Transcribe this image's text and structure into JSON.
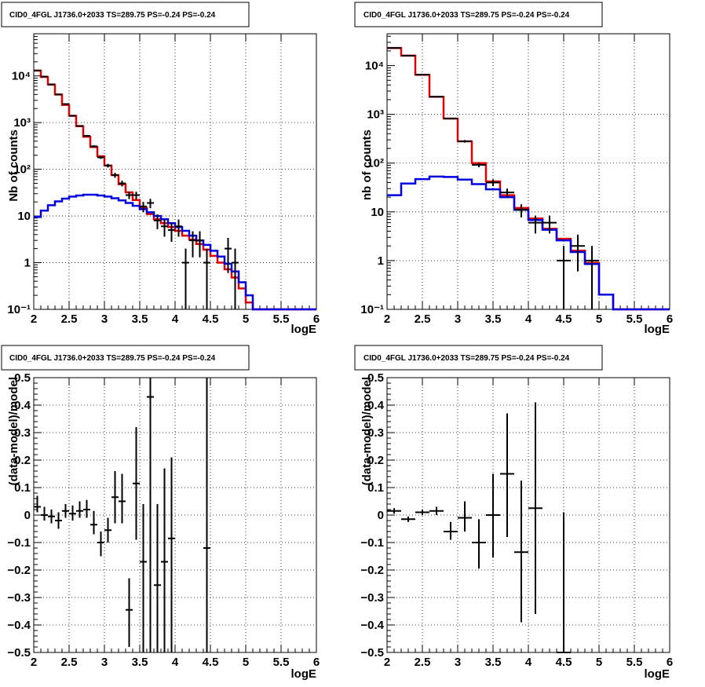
{
  "colors": {
    "data": "#000000",
    "model_total": "#e00000",
    "model_source": "#0000e0",
    "grid": "#000000",
    "frame": "#000000"
  },
  "chart_data": [
    {
      "id": "top-left",
      "type": "line",
      "title": "CID0_4FGL J1736.0+2033 TS=289.75 PS=-0.24 PS=-0.24",
      "xlabel": "logE",
      "ylabel": "Nb of counts",
      "xlim": [
        2,
        6
      ],
      "ylim": [
        0.1,
        80000
      ],
      "yscale": "log",
      "grid": true,
      "xticks": [
        2,
        2.5,
        3,
        3.5,
        4,
        4.5,
        5,
        5.5,
        6
      ],
      "xticklabels": [
        "2",
        "2.5",
        "3",
        "3.5",
        "4",
        "4.5",
        "5",
        "5.5",
        "6"
      ],
      "yticks": [
        0.1,
        1,
        10,
        100,
        1000,
        10000
      ],
      "yticklabels": [
        "10⁻¹",
        "1",
        "10",
        "10²",
        "10³",
        "10⁴"
      ],
      "bin_edges": [
        2.0,
        2.1,
        2.2,
        2.3,
        2.4,
        2.5,
        2.6,
        2.7,
        2.8,
        2.9,
        3.0,
        3.1,
        3.2,
        3.3,
        3.4,
        3.5,
        3.6,
        3.7,
        3.8,
        3.9,
        4.0,
        4.1,
        4.2,
        4.3,
        4.4,
        4.5,
        4.6,
        4.7,
        4.8,
        4.9,
        5.0,
        5.1,
        5.2,
        5.3,
        5.4,
        5.5,
        5.6,
        5.7,
        5.8,
        5.9,
        6.0
      ],
      "series": [
        {
          "style": "step",
          "color": "#e00000",
          "values": [
            13000,
            9500,
            6500,
            4000,
            2400,
            1400,
            840,
            500,
            300,
            190,
            120,
            75,
            48,
            32,
            22,
            15,
            11,
            8.5,
            7.0,
            5.8,
            4.8,
            3.8,
            3.1,
            2.5,
            1.9,
            1.4,
            1.0,
            0.72,
            0.48,
            0.28,
            0.14,
            0.1,
            0.1,
            0.1,
            0.1,
            0.1,
            0.1,
            0.1,
            0.1,
            0.1
          ]
        },
        {
          "style": "step",
          "color": "#0000e0",
          "values": [
            9.5,
            13,
            17,
            20.5,
            23.5,
            26,
            27.5,
            28.5,
            28.5,
            27.5,
            26,
            24,
            21.5,
            19,
            16.5,
            14,
            12,
            10,
            8.5,
            7.0,
            5.8,
            4.8,
            3.8,
            3.0,
            2.4,
            1.8,
            1.35,
            0.95,
            0.65,
            0.38,
            0.2,
            0.1,
            0.1,
            0.1,
            0.1,
            0.1,
            0.1,
            0.1,
            0.1,
            0.1
          ]
        },
        {
          "style": "points",
          "color": "#000000",
          "x": [
            2.05,
            2.15,
            2.25,
            2.35,
            2.45,
            2.55,
            2.65,
            2.75,
            2.85,
            2.95,
            3.05,
            3.15,
            3.25,
            3.35,
            3.45,
            3.55,
            3.65,
            3.75,
            3.85,
            3.95,
            4.05,
            4.15,
            4.25,
            4.35,
            4.45,
            4.75,
            4.85
          ],
          "y": [
            13000,
            9700,
            6600,
            4000,
            2500,
            1400,
            850,
            520,
            310,
            180,
            120,
            75,
            50,
            28,
            28,
            16,
            19,
            8,
            6,
            5,
            6,
            1,
            3,
            3,
            1,
            2,
            1
          ],
          "yerr": [
            114,
            98,
            81,
            63,
            50,
            37,
            29,
            23,
            18,
            13,
            11,
            9,
            7,
            5,
            5,
            4,
            4.3,
            2.8,
            2.4,
            2.2,
            2.4,
            1,
            1.7,
            1.7,
            1,
            1.4,
            1
          ]
        }
      ]
    },
    {
      "id": "top-right",
      "type": "line",
      "title": "CID0_4FGL J1736.0+2033 TS=289.75 PS=-0.24 PS=-0.24",
      "xlabel": "logE",
      "ylabel": "nb of counts",
      "xlim": [
        2,
        6
      ],
      "ylim": [
        0.1,
        45000
      ],
      "yscale": "log",
      "grid": true,
      "xticks": [
        2,
        2.5,
        3,
        3.5,
        4,
        4.5,
        5,
        5.5,
        6
      ],
      "xticklabels": [
        "2",
        "2.5",
        "3",
        "3.5",
        "4",
        "4.5",
        "5",
        "5.5",
        "6"
      ],
      "yticks": [
        0.1,
        1,
        10,
        100,
        1000,
        10000
      ],
      "yticklabels": [
        "10⁻¹",
        "1",
        "10",
        "10²",
        "10³",
        "10⁴"
      ],
      "bin_edges": [
        2.0,
        2.2,
        2.4,
        2.6,
        2.8,
        3.0,
        3.2,
        3.4,
        3.6,
        3.8,
        4.0,
        4.2,
        4.4,
        4.6,
        4.8,
        5.0,
        5.2,
        5.4,
        5.6,
        5.8,
        6.0
      ],
      "series": [
        {
          "style": "step",
          "color": "#e00000",
          "values": [
            23000,
            16000,
            6500,
            2300,
            820,
            280,
            100,
            42,
            22,
            12,
            7.3,
            4.5,
            2.8,
            1.6,
            0.9,
            0.2,
            0.1,
            0.1,
            0.1,
            0.1
          ]
        },
        {
          "style": "step",
          "color": "#0000e0",
          "values": [
            22,
            38,
            47,
            53,
            52,
            46,
            37,
            29,
            20,
            11,
            6.8,
            4.3,
            2.6,
            1.5,
            0.85,
            0.2,
            0.1,
            0.1,
            0.1,
            0.1
          ]
        },
        {
          "style": "points",
          "color": "#000000",
          "x": [
            2.1,
            2.3,
            2.5,
            2.7,
            2.9,
            3.1,
            3.3,
            3.5,
            3.7,
            3.9,
            4.1,
            4.3,
            4.5,
            4.7,
            4.9
          ],
          "y": [
            23000,
            16000,
            6500,
            2300,
            820,
            280,
            92,
            40,
            25,
            11,
            6,
            6,
            1,
            2,
            1
          ],
          "yerr": [
            152,
            126,
            81,
            48,
            29,
            17,
            9.6,
            6.3,
            5,
            3.3,
            2.4,
            2.4,
            1,
            1.4,
            1
          ]
        }
      ]
    },
    {
      "id": "bottom-left",
      "type": "scatter",
      "title": "CID0_4FGL J1736.0+2033 TS=289.75 PS=-0.24 PS=-0.24",
      "xlabel": "logE",
      "ylabel": "(data-model)/model",
      "xlim": [
        2,
        6
      ],
      "ylim": [
        -0.5,
        0.5
      ],
      "yscale": "linear",
      "grid": true,
      "xticks": [
        2,
        2.5,
        3,
        3.5,
        4,
        4.5,
        5,
        5.5,
        6
      ],
      "xticklabels": [
        "2",
        "2.5",
        "3",
        "3.5",
        "4",
        "4.5",
        "5",
        "5.5",
        "6"
      ],
      "yticks": [
        -0.5,
        -0.4,
        -0.3,
        -0.2,
        -0.1,
        0,
        0.1,
        0.2,
        0.3,
        0.4,
        0.5
      ],
      "yticklabels": [
        "−0.5",
        "−0.4",
        "−0.3",
        "−0.2",
        "−0.1",
        "0",
        "0.1",
        "0.2",
        "0.3",
        "0.4",
        "0.5"
      ],
      "xhalf": 0.05,
      "series": [
        {
          "style": "points",
          "color": "#000000",
          "x": [
            2.05,
            2.15,
            2.25,
            2.35,
            2.45,
            2.55,
            2.65,
            2.75,
            2.85,
            2.95,
            3.05,
            3.15,
            3.25,
            3.35,
            3.45,
            3.55,
            3.65,
            3.75,
            3.85,
            3.95,
            4.45
          ],
          "y": [
            0.03,
            0.0,
            -0.005,
            -0.02,
            0.015,
            0.005,
            0.015,
            0.02,
            -0.035,
            -0.1,
            -0.055,
            0.065,
            0.05,
            -0.345,
            0.115,
            -0.17,
            0.43,
            -0.255,
            -0.17,
            -0.085,
            -0.12
          ],
          "ylo": [
            0.01,
            -0.02,
            -0.03,
            -0.05,
            -0.01,
            -0.02,
            -0.01,
            -0.01,
            -0.07,
            -0.15,
            -0.1,
            -0.03,
            -0.03,
            -0.48,
            -0.09,
            -0.5,
            -0.5,
            -0.5,
            -0.5,
            -0.5,
            -0.5
          ],
          "yhi": [
            0.07,
            0.03,
            0.02,
            0.01,
            0.04,
            0.035,
            0.05,
            0.055,
            0.015,
            -0.06,
            -0.01,
            0.16,
            0.15,
            -0.23,
            0.32,
            0.04,
            0.5,
            0.04,
            0.17,
            0.21,
            0.5
          ]
        }
      ]
    },
    {
      "id": "bottom-right",
      "type": "scatter",
      "title": "CID0_4FGL J1736.0+2033 TS=289.75 PS=-0.24 PS=-0.24",
      "xlabel": "logE",
      "ylabel": "(data-model)/model",
      "xlim": [
        2,
        6
      ],
      "ylim": [
        -0.5,
        0.5
      ],
      "yscale": "linear",
      "grid": true,
      "xticks": [
        2,
        2.5,
        3,
        3.5,
        4,
        4.5,
        5,
        5.5,
        6
      ],
      "xticklabels": [
        "2",
        "2.5",
        "3",
        "3.5",
        "4",
        "4.5",
        "5",
        "5.5",
        "6"
      ],
      "yticks": [
        -0.5,
        -0.4,
        -0.3,
        -0.2,
        -0.1,
        0,
        0.1,
        0.2,
        0.3,
        0.4,
        0.5
      ],
      "yticklabels": [
        "−0.5",
        "−0.4",
        "−0.3",
        "−0.2",
        "−0.1",
        "0",
        "0.1",
        "0.2",
        "0.3",
        "0.4",
        "0.5"
      ],
      "xhalf": 0.1,
      "series": [
        {
          "style": "points",
          "color": "#000000",
          "x": [
            2.1,
            2.3,
            2.5,
            2.7,
            2.9,
            3.1,
            3.3,
            3.5,
            3.7,
            3.9,
            4.1,
            4.5
          ],
          "y": [
            0.015,
            -0.015,
            0.01,
            0.015,
            -0.06,
            -0.01,
            -0.1,
            0.0,
            0.15,
            -0.135,
            0.025,
            -0.5
          ],
          "ylo": [
            0.005,
            -0.025,
            0.0,
            0.0,
            -0.09,
            -0.06,
            -0.195,
            -0.155,
            -0.08,
            -0.39,
            -0.36,
            -0.5
          ],
          "yhi": [
            0.025,
            -0.005,
            0.02,
            0.03,
            -0.025,
            0.05,
            -0.015,
            0.15,
            0.37,
            0.125,
            0.41,
            0.01
          ]
        }
      ]
    }
  ]
}
